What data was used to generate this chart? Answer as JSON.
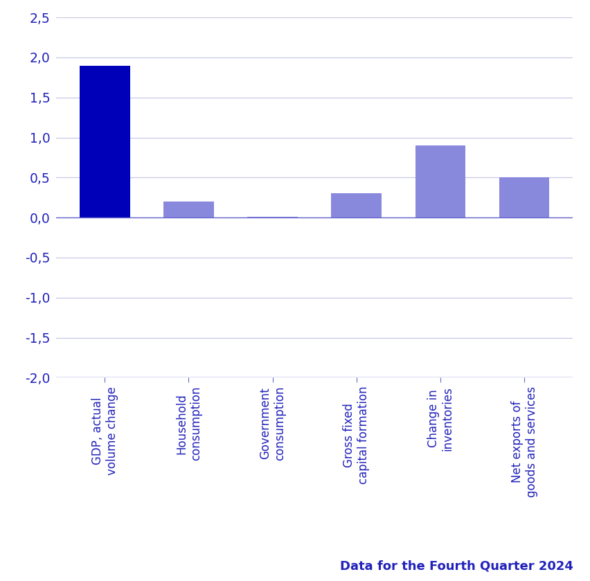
{
  "categories": [
    "GDP, actual\nvolume change",
    "Household\nconsumption",
    "Government\nconsumption",
    "Gross fixed\ncapital formation",
    "Change in\ninventories",
    "Net exports of\ngoods and services"
  ],
  "values": [
    1.9,
    0.2,
    0.01,
    0.3,
    0.9,
    0.5
  ],
  "bar_colors": [
    "#0000b8",
    "#8888dd",
    "#8888dd",
    "#8888dd",
    "#8888dd",
    "#8888dd"
  ],
  "ylim": [
    -2.0,
    2.5
  ],
  "yticks": [
    -2.0,
    -1.5,
    -1.0,
    -0.5,
    0.0,
    0.5,
    1.0,
    1.5,
    2.0,
    2.5
  ],
  "grid_color": "#c8c8e8",
  "axis_color": "#6666cc",
  "tick_color": "#2222bb",
  "label_color": "#2222bb",
  "footer_text": "Data for the Fourth Quarter 2024",
  "footer_color": "#2222bb",
  "background_color": "#ffffff",
  "bar_width": 0.6
}
